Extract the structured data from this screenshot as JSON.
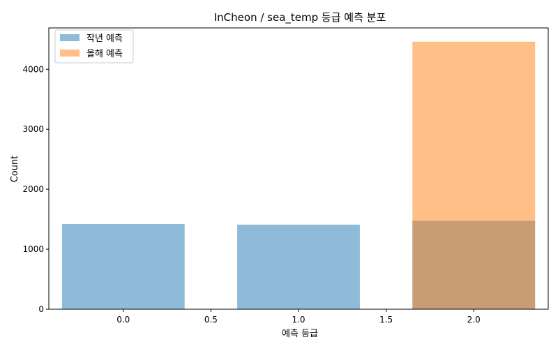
{
  "chart_data": {
    "type": "bar",
    "title": "InCheon / sea_temp 등급 예측 분포",
    "xlabel": "예측 등급",
    "ylabel": "Count",
    "xlim": [
      -0.425,
      2.425
    ],
    "ylim": [
      0,
      4690
    ],
    "x_ticks": [
      0.0,
      0.5,
      1.0,
      1.5,
      2.0
    ],
    "x_tick_labels": [
      "0.0",
      "0.5",
      "1.0",
      "1.5",
      "2.0"
    ],
    "y_ticks": [
      0,
      1000,
      2000,
      3000,
      4000
    ],
    "y_tick_labels": [
      "0",
      "1000",
      "2000",
      "3000",
      "4000"
    ],
    "bar_width": 0.7,
    "grid": false,
    "legend_position": "top-left",
    "series": [
      {
        "name": "작년 예측",
        "x": [
          0,
          1,
          2
        ],
        "values": [
          1420,
          1410,
          1475
        ],
        "color": "#1f77b4",
        "alpha": 0.5
      },
      {
        "name": "올해 예측",
        "x": [
          2
        ],
        "values": [
          4460
        ],
        "color": "#ff7f0e",
        "alpha": 0.5
      }
    ]
  }
}
